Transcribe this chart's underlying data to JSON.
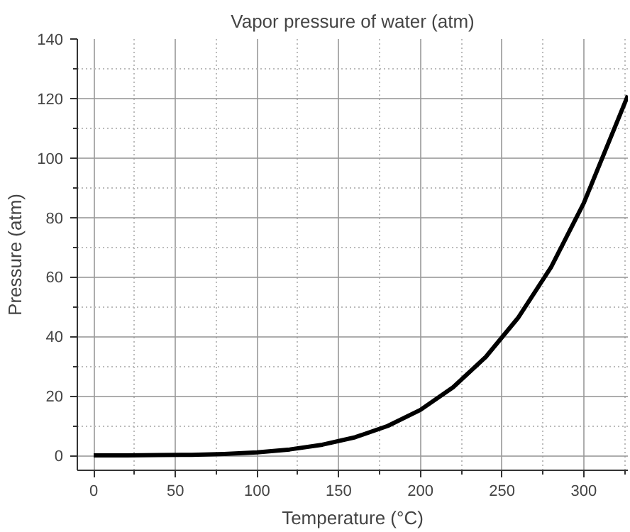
{
  "chart_data": {
    "type": "line",
    "title": "Vapor pressure of water (atm)",
    "xlabel": "Temperature (°C)",
    "ylabel": "Pressure (atm)",
    "x": [
      0,
      20,
      40,
      60,
      80,
      100,
      120,
      140,
      160,
      180,
      200,
      220,
      240,
      260,
      280,
      300,
      327
    ],
    "series": [
      {
        "color": "#000000",
        "values": [
          0,
          0,
          0.1,
          0.2,
          0.5,
          1,
          2,
          3.6,
          6.1,
          9.9,
          15.3,
          22.9,
          33.1,
          46.4,
          63.3,
          84.8,
          121
        ]
      }
    ],
    "xlim": [
      -10,
      327
    ],
    "ylim": [
      -5,
      140
    ],
    "xticks": [
      0,
      {
        "value": 25,
        "label": null
      },
      50,
      {
        "value": 75,
        "label": null
      },
      100,
      {
        "value": 125,
        "label": null
      },
      150,
      {
        "value": 175,
        "label": null
      },
      200,
      {
        "value": 225,
        "label": null
      },
      250,
      {
        "value": 275,
        "label": null
      },
      300,
      {
        "value": 325,
        "label": null
      }
    ],
    "yticks": [
      0,
      {
        "value": 10,
        "label": null
      },
      20,
      {
        "value": 30,
        "label": null
      },
      40,
      {
        "value": 50,
        "label": null
      },
      60,
      {
        "value": 70,
        "label": null
      },
      80,
      {
        "value": 90,
        "label": null
      },
      100,
      {
        "value": 110,
        "label": null
      },
      120,
      {
        "value": 130,
        "label": null
      },
      140
    ],
    "grid": true,
    "marker": "none",
    "line_style": "solid"
  }
}
